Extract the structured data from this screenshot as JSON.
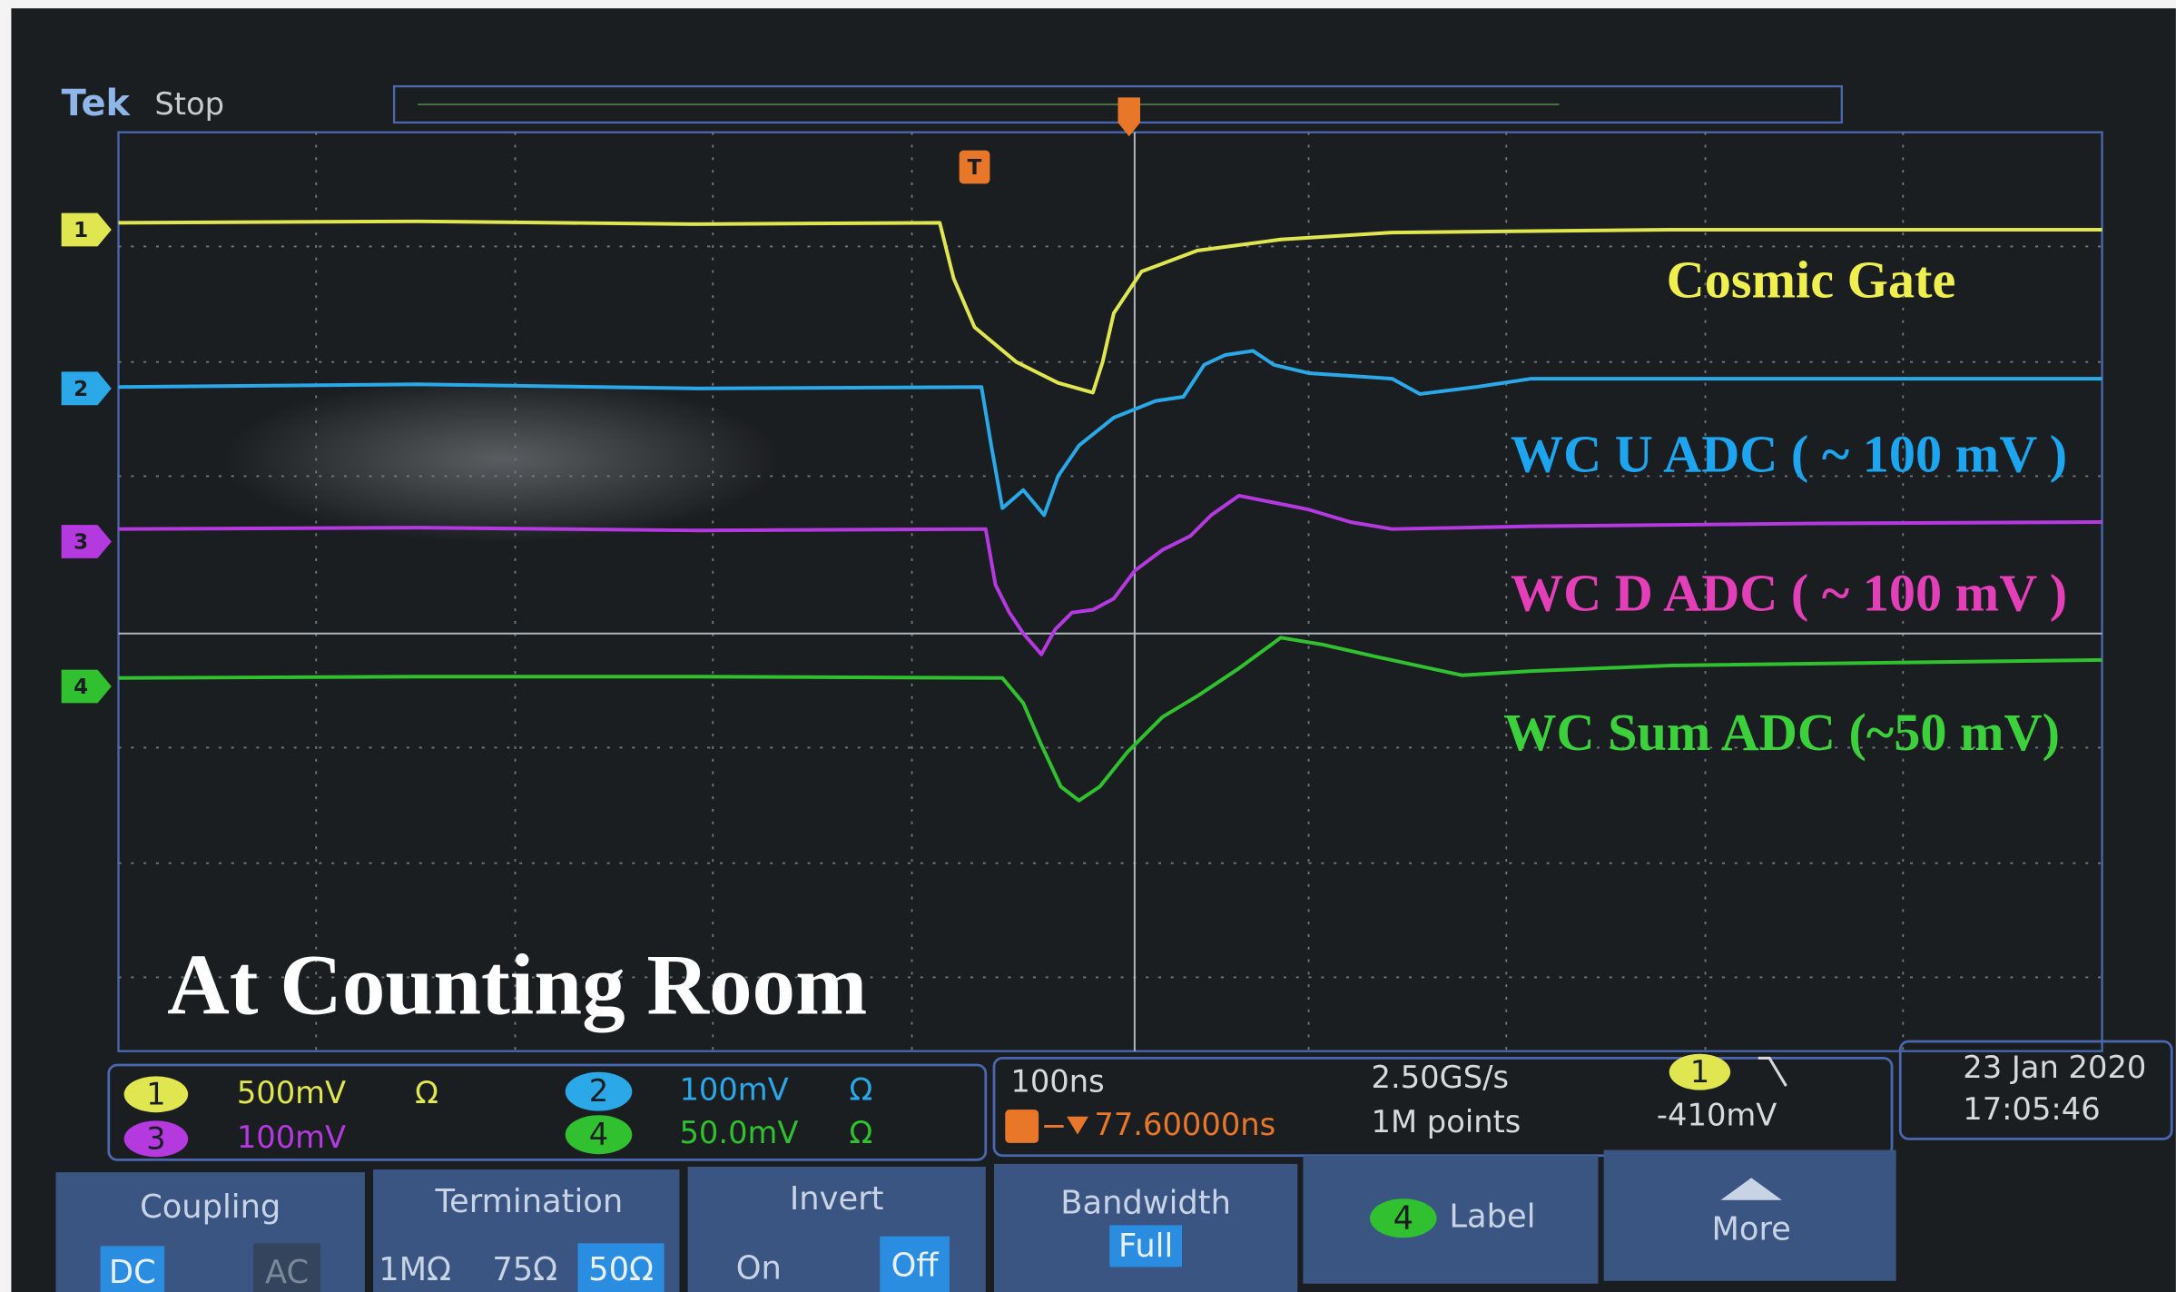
{
  "header": {
    "brand": "Tek",
    "status": "Stop"
  },
  "trigger_marker": "T",
  "channels": [
    {
      "marker": "1",
      "annotation": "Cosmic Gate"
    },
    {
      "marker": "2",
      "annotation": "WC U ADC ( ~  100 mV )"
    },
    {
      "marker": "3",
      "annotation": "WC D ADC ( ~  100 mV )"
    },
    {
      "marker": "4",
      "annotation": "WC Sum ADC  (~50 mV)"
    }
  ],
  "caption": "At Counting Room",
  "readout": {
    "ch1": {
      "number": "1",
      "scale": "500mV",
      "termination": "Ω"
    },
    "ch2": {
      "number": "2",
      "scale": "100mV",
      "termination": "Ω"
    },
    "ch3": {
      "number": "3",
      "scale": "100mV"
    },
    "ch4": {
      "number": "4",
      "scale": "50.0mV",
      "termination": "Ω"
    },
    "timebase": "100ns",
    "trigger_position": "77.60000ns",
    "sample_rate": "2.50GS/s",
    "record_length": "1M points",
    "trigger_source": "1",
    "trigger_level": "-410mV",
    "date": "23 Jan  2020",
    "time": "17:05:46"
  },
  "menu": {
    "coupling": {
      "title": "Coupling",
      "options": [
        "DC",
        "AC"
      ]
    },
    "termination": {
      "title": "Termination",
      "options": [
        "1MΩ",
        "75Ω",
        "50Ω"
      ]
    },
    "invert": {
      "title": "Invert",
      "options": [
        "On",
        "Off"
      ]
    },
    "bandwidth": {
      "title": "Bandwidth",
      "value": "Full"
    },
    "label": {
      "channel": "4",
      "title": "Label"
    },
    "more": {
      "title": "More"
    }
  }
}
